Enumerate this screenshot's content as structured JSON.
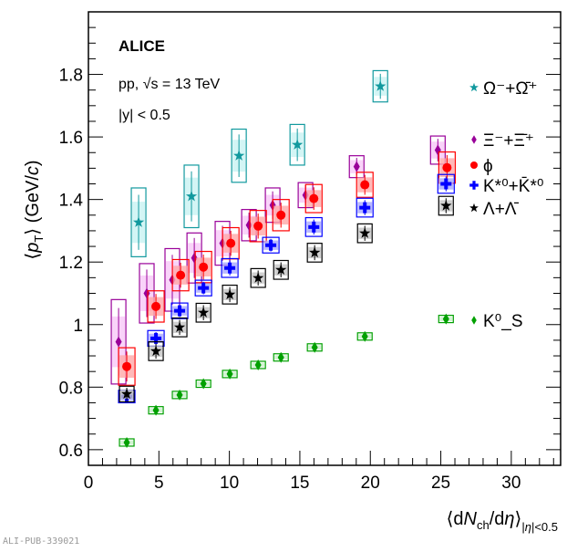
{
  "chart_data": {
    "type": "scatter",
    "title": "",
    "annotations": [
      "ALICE",
      "pp, √s = 13 TeV",
      "|y| < 0.5"
    ],
    "xlabel": "⟨dN_ch/dη⟩_|η|<0.5",
    "ylabel": "⟨p_T⟩ (GeV/c)",
    "xlim": [
      0,
      33.5
    ],
    "ylim": [
      0.55,
      2.0
    ],
    "x_ticks": [
      0,
      5,
      10,
      15,
      20,
      25,
      30
    ],
    "y_ticks": [
      0.6,
      0.8,
      1,
      1.2,
      1.4,
      1.6,
      1.8
    ],
    "x_tick_labels": [
      "0",
      "5",
      "10",
      "15",
      "20",
      "25",
      "30"
    ],
    "y_tick_labels": [
      "0.6",
      "0.8",
      "1",
      "1.2",
      "1.4",
      "1.6",
      "1.8"
    ],
    "grid": false,
    "legend_placement": "right",
    "series": [
      {
        "name": "Ω⁻+Ω̄⁺",
        "marker": "star",
        "color": "#11999e",
        "fill": "#c8f2f2",
        "x": [
          3.56,
          7.31,
          10.68,
          14.82,
          20.71
        ],
        "y": [
          1.327,
          1.41,
          1.54,
          1.575,
          1.762
        ],
        "sys": [
          0.11,
          0.1,
          0.085,
          0.065,
          0.05
        ]
      },
      {
        "name": "Ξ⁻+Ξ̄⁺",
        "marker": "diamond",
        "color": "#990099",
        "fill": "#f7c8f7",
        "x": [
          2.14,
          4.14,
          5.95,
          7.51,
          9.51,
          11.39,
          13.07,
          15.4,
          19.03,
          24.79
        ],
        "y": [
          0.945,
          1.1,
          1.143,
          1.213,
          1.26,
          1.318,
          1.382,
          1.414,
          1.505,
          1.558
        ],
        "sys": [
          0.135,
          0.095,
          0.1,
          0.08,
          0.07,
          0.05,
          0.055,
          0.04,
          0.035,
          0.045
        ]
      },
      {
        "name": "ϕ",
        "marker": "circle",
        "color": "#ff0000",
        "fill": "#ffa8a8",
        "x": [
          2.72,
          4.79,
          6.54,
          8.16,
          10.1,
          12.04,
          13.66,
          15.99,
          19.61,
          25.44
        ],
        "y": [
          0.866,
          1.058,
          1.158,
          1.184,
          1.26,
          1.315,
          1.35,
          1.403,
          1.447,
          1.502
        ],
        "sys": [
          0.06,
          0.05,
          0.05,
          0.05,
          0.05,
          0.05,
          0.05,
          0.045,
          0.04,
          0.05
        ]
      },
      {
        "name": "K*⁰+K̄*⁰",
        "marker": "cross",
        "color": "#0000ff",
        "fill": "#a8a8ff",
        "x": [
          2.72,
          4.79,
          6.47,
          8.16,
          10.03,
          12.94,
          15.99,
          19.61,
          25.37
        ],
        "y": [
          0.77,
          0.956,
          1.044,
          1.117,
          1.181,
          1.254,
          1.312,
          1.374,
          1.45
        ],
        "sys": [
          0.02,
          0.025,
          0.025,
          0.025,
          0.03,
          0.025,
          0.03,
          0.03,
          0.03
        ]
      },
      {
        "name": "Λ+Λ̄",
        "marker": "star",
        "color": "#000000",
        "fill": "#c4c4c4",
        "x": [
          2.72,
          4.79,
          6.47,
          8.16,
          10.03,
          12.04,
          13.66,
          16.05,
          19.61,
          25.37
        ],
        "y": [
          0.778,
          0.915,
          0.991,
          1.038,
          1.096,
          1.149,
          1.175,
          1.23,
          1.292,
          1.38
        ],
        "sys": [
          0.025,
          0.03,
          0.03,
          0.03,
          0.03,
          0.03,
          0.03,
          0.03,
          0.03,
          0.03
        ]
      },
      {
        "name": "K⁰_S",
        "marker": "diamond",
        "color": "#00a000",
        "fill": "#c8f0c8",
        "x": [
          2.72,
          4.79,
          6.47,
          8.16,
          10.03,
          12.04,
          13.66,
          16.05,
          19.61,
          25.37
        ],
        "y": [
          0.623,
          0.726,
          0.775,
          0.811,
          0.842,
          0.871,
          0.895,
          0.927,
          0.962,
          1.018
        ],
        "sys": [
          0.008,
          0.008,
          0.008,
          0.008,
          0.008,
          0.008,
          0.008,
          0.008,
          0.008,
          0.008
        ]
      }
    ]
  },
  "footer": "ALI-PUB-339021"
}
